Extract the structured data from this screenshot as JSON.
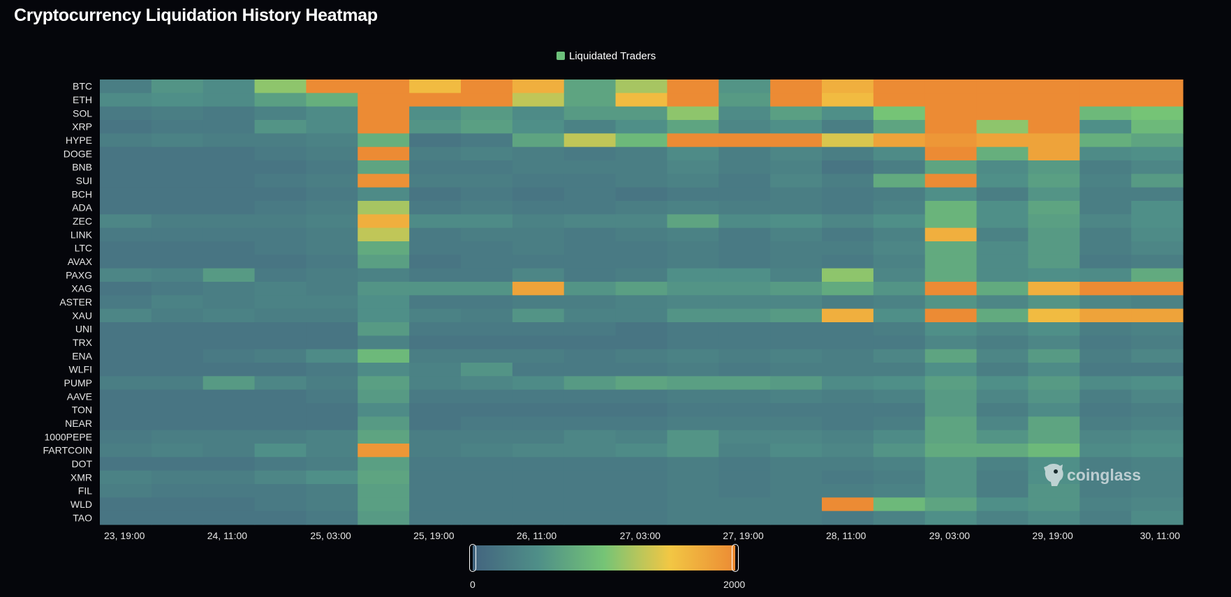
{
  "title": "Cryptocurrency Liquidation History Heatmap",
  "legend": {
    "label": "Liquidated Traders",
    "color": "#6cc07a"
  },
  "watermark": "coinglass",
  "visual_map": {
    "min_label": "0",
    "max_label": "2000",
    "min": 0,
    "max": 2000,
    "colors": [
      "#43647f",
      "#4f8f88",
      "#75c476",
      "#f2c744",
      "#ec8b34"
    ]
  },
  "chart_data": {
    "type": "heatmap",
    "title": "Cryptocurrency Liquidation History Heatmap",
    "series_name": "Liquidated Traders",
    "x_tick_labels": [
      "23, 19:00",
      "24, 11:00",
      "25, 03:00",
      "25, 19:00",
      "26, 11:00",
      "27, 03:00",
      "27, 19:00",
      "28, 11:00",
      "29, 03:00",
      "29, 19:00",
      "30, 11:00"
    ],
    "x_columns": 21,
    "y_categories": [
      "BTC",
      "ETH",
      "SOL",
      "XRP",
      "HYPE",
      "DOGE",
      "BNB",
      "SUI",
      "BCH",
      "ADA",
      "ZEC",
      "LINK",
      "LTC",
      "AVAX",
      "PAXG",
      "XAG",
      "ASTER",
      "XAU",
      "UNI",
      "TRX",
      "ENA",
      "WLFI",
      "PUMP",
      "AAVE",
      "TON",
      "NEAR",
      "1000PEPE",
      "FARTCOIN",
      "DOT",
      "XMR",
      "FIL",
      "WLD",
      "TAO"
    ],
    "value_range": [
      0,
      2000
    ],
    "grid": false,
    "legend_position": "top-center",
    "values": [
      [
        300,
        550,
        450,
        1100,
        2000,
        2000,
        1600,
        2000,
        1700,
        700,
        1200,
        2000,
        550,
        2000,
        1700,
        2000,
        2000,
        2000,
        2000,
        2000,
        2000
      ],
      [
        450,
        500,
        450,
        650,
        800,
        2000,
        2000,
        2000,
        1300,
        700,
        1600,
        2000,
        600,
        2000,
        1600,
        2000,
        2000,
        2000,
        2000,
        2000,
        2000
      ],
      [
        250,
        300,
        250,
        350,
        450,
        2000,
        500,
        600,
        450,
        600,
        600,
        1100,
        450,
        650,
        500,
        1000,
        2000,
        2000,
        2000,
        900,
        1000
      ],
      [
        200,
        250,
        250,
        550,
        450,
        2000,
        550,
        650,
        500,
        350,
        500,
        700,
        400,
        500,
        300,
        700,
        2000,
        1100,
        2000,
        500,
        900
      ],
      [
        300,
        350,
        300,
        300,
        350,
        800,
        200,
        250,
        700,
        1300,
        900,
        2000,
        2000,
        2000,
        1400,
        1800,
        1900,
        1800,
        1800,
        800,
        700
      ],
      [
        200,
        200,
        200,
        250,
        300,
        2000,
        300,
        350,
        300,
        250,
        300,
        450,
        300,
        400,
        300,
        450,
        2000,
        800,
        1800,
        450,
        500
      ],
      [
        200,
        200,
        200,
        200,
        250,
        700,
        250,
        250,
        300,
        300,
        300,
        400,
        300,
        350,
        200,
        300,
        700,
        450,
        600,
        300,
        400
      ],
      [
        200,
        200,
        200,
        250,
        300,
        1950,
        300,
        300,
        250,
        250,
        300,
        350,
        250,
        400,
        300,
        750,
        2000,
        500,
        650,
        350,
        600
      ],
      [
        200,
        200,
        200,
        200,
        250,
        450,
        200,
        250,
        200,
        250,
        200,
        250,
        250,
        300,
        250,
        300,
        500,
        300,
        550,
        300,
        300
      ],
      [
        200,
        200,
        200,
        250,
        300,
        1200,
        250,
        300,
        250,
        250,
        300,
        350,
        300,
        300,
        250,
        350,
        850,
        500,
        700,
        300,
        500
      ],
      [
        400,
        300,
        300,
        300,
        350,
        1700,
        450,
        450,
        350,
        400,
        400,
        700,
        450,
        500,
        400,
        500,
        850,
        500,
        650,
        400,
        500
      ],
      [
        250,
        250,
        250,
        250,
        300,
        1300,
        250,
        300,
        300,
        250,
        300,
        350,
        250,
        350,
        250,
        350,
        1700,
        350,
        600,
        300,
        450
      ],
      [
        200,
        200,
        200,
        250,
        300,
        750,
        250,
        250,
        300,
        250,
        250,
        300,
        250,
        300,
        300,
        400,
        750,
        450,
        600,
        300,
        400
      ],
      [
        200,
        200,
        200,
        200,
        250,
        650,
        200,
        250,
        250,
        250,
        250,
        300,
        250,
        300,
        250,
        350,
        750,
        450,
        600,
        250,
        300
      ],
      [
        400,
        350,
        600,
        250,
        300,
        350,
        250,
        250,
        400,
        250,
        300,
        500,
        500,
        350,
        1100,
        400,
        750,
        450,
        500,
        450,
        750
      ],
      [
        200,
        250,
        300,
        350,
        300,
        550,
        550,
        550,
        1800,
        550,
        650,
        550,
        550,
        600,
        750,
        550,
        2000,
        750,
        1700,
        2000,
        2000
      ],
      [
        250,
        350,
        300,
        350,
        350,
        500,
        250,
        250,
        300,
        300,
        350,
        400,
        400,
        400,
        300,
        350,
        550,
        400,
        550,
        400,
        350
      ],
      [
        400,
        300,
        350,
        300,
        300,
        500,
        350,
        300,
        550,
        350,
        350,
        550,
        550,
        600,
        1700,
        500,
        2000,
        750,
        1600,
        1800,
        1800
      ],
      [
        200,
        200,
        200,
        200,
        200,
        600,
        250,
        250,
        250,
        250,
        200,
        250,
        250,
        250,
        250,
        300,
        500,
        400,
        500,
        300,
        350
      ],
      [
        200,
        200,
        200,
        200,
        200,
        350,
        200,
        200,
        200,
        200,
        200,
        250,
        250,
        250,
        250,
        250,
        400,
        300,
        400,
        250,
        300
      ],
      [
        200,
        200,
        250,
        300,
        450,
        900,
        300,
        300,
        300,
        250,
        300,
        350,
        300,
        350,
        300,
        400,
        700,
        400,
        600,
        300,
        400
      ],
      [
        200,
        200,
        200,
        200,
        250,
        450,
        350,
        550,
        250,
        250,
        250,
        300,
        250,
        300,
        300,
        300,
        500,
        300,
        450,
        250,
        250
      ],
      [
        300,
        300,
        600,
        400,
        300,
        650,
        350,
        400,
        450,
        600,
        700,
        650,
        650,
        600,
        450,
        500,
        650,
        500,
        600,
        450,
        500
      ],
      [
        200,
        200,
        200,
        200,
        250,
        600,
        250,
        250,
        250,
        250,
        250,
        300,
        300,
        350,
        300,
        350,
        600,
        400,
        550,
        300,
        400
      ],
      [
        200,
        200,
        200,
        200,
        200,
        450,
        200,
        200,
        200,
        200,
        200,
        250,
        250,
        250,
        250,
        250,
        600,
        300,
        450,
        250,
        300
      ],
      [
        200,
        200,
        200,
        200,
        200,
        600,
        200,
        250,
        250,
        250,
        250,
        300,
        300,
        300,
        250,
        300,
        700,
        400,
        700,
        300,
        350
      ],
      [
        250,
        300,
        300,
        300,
        350,
        700,
        300,
        300,
        300,
        400,
        350,
        550,
        400,
        400,
        350,
        450,
        700,
        550,
        700,
        400,
        450
      ],
      [
        300,
        350,
        300,
        500,
        350,
        1900,
        300,
        350,
        400,
        400,
        450,
        550,
        350,
        450,
        400,
        550,
        750,
        750,
        900,
        450,
        500
      ],
      [
        200,
        200,
        200,
        250,
        300,
        650,
        250,
        250,
        250,
        250,
        250,
        300,
        250,
        300,
        300,
        350,
        550,
        350,
        500,
        300,
        350
      ],
      [
        350,
        300,
        300,
        400,
        500,
        700,
        250,
        250,
        250,
        250,
        250,
        300,
        250,
        300,
        250,
        300,
        550,
        300,
        500,
        300,
        350
      ],
      [
        300,
        250,
        250,
        250,
        300,
        650,
        250,
        250,
        250,
        250,
        250,
        300,
        250,
        300,
        300,
        350,
        550,
        300,
        550,
        300,
        350
      ],
      [
        200,
        200,
        200,
        250,
        300,
        650,
        250,
        250,
        250,
        250,
        250,
        300,
        300,
        300,
        2000,
        900,
        700,
        500,
        550,
        350,
        400
      ],
      [
        200,
        200,
        200,
        200,
        250,
        600,
        250,
        250,
        250,
        250,
        250,
        300,
        300,
        300,
        250,
        350,
        500,
        350,
        450,
        300,
        450
      ]
    ]
  }
}
